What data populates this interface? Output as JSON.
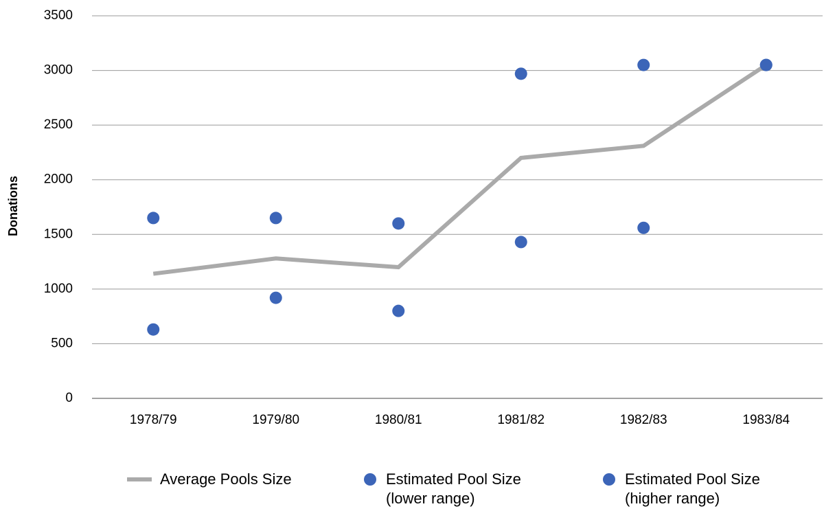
{
  "chart_data": {
    "type": "line",
    "y_label": "Donations",
    "categories": [
      "1978/79",
      "1979/80",
      "1980/81",
      "1981/82",
      "1982/83",
      "1983/84"
    ],
    "series": [
      {
        "name": "Average Pools Size",
        "type": "line",
        "color": "#aaaaaa",
        "values": [
          1140,
          1280,
          1200,
          2200,
          2310,
          3050
        ]
      },
      {
        "name": "Estimated Pool Size (lower range)",
        "type": "scatter",
        "color": "#3c65b8",
        "values": [
          630,
          920,
          800,
          1430,
          1560,
          3050
        ]
      },
      {
        "name": "Estimated Pool Size (higher range)",
        "type": "scatter",
        "color": "#3c65b8",
        "values": [
          1650,
          1650,
          1600,
          2970,
          3050,
          3050
        ]
      }
    ],
    "ylim": [
      0,
      3500
    ],
    "yticks": [
      0,
      500,
      1000,
      1500,
      2000,
      2500,
      3000,
      3500
    ],
    "grid": true,
    "legend": "bottom"
  }
}
